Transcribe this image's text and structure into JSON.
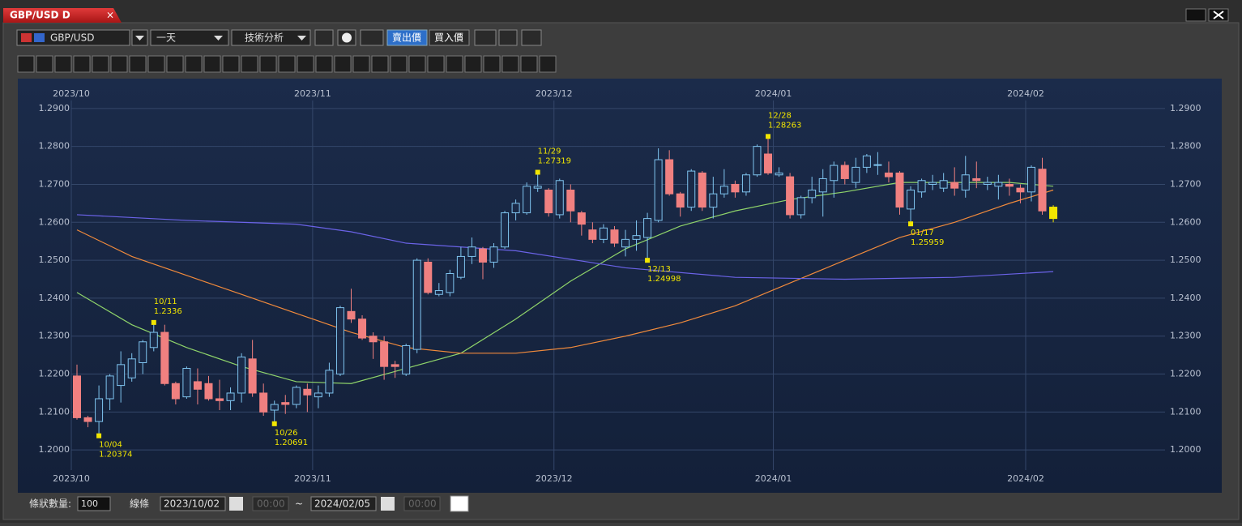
{
  "tab": {
    "title": "GBP/USD D",
    "close": "×"
  },
  "toolbar": {
    "symbol": "GBP/USD",
    "period": "一天",
    "analysis": "技術分析",
    "sell": "賣出價",
    "buy": "買入價"
  },
  "footer": {
    "bars_label": "條狀數量:",
    "bars": "100",
    "line": "線條",
    "from_date": "2023/10/02",
    "from_time": "00:00",
    "sep": "~",
    "to_date": "2024/02/05",
    "to_time": "00:00"
  },
  "chart_data": {
    "type": "candlestick",
    "up_color": "#7fc4ef",
    "down_color": "#f08080",
    "last_color": "#f2e600",
    "ylim": [
      1.1947,
      1.2921
    ],
    "yticks": [
      {
        "value": 1.2,
        "label": "1.2000"
      },
      {
        "value": 1.21,
        "label": "1.2100"
      },
      {
        "value": 1.22,
        "label": "1.2200"
      },
      {
        "value": 1.23,
        "label": "1.2300"
      },
      {
        "value": 1.24,
        "label": "1.2400"
      },
      {
        "value": 1.25,
        "label": "1.2500"
      },
      {
        "value": 1.26,
        "label": "1.2600"
      },
      {
        "value": 1.27,
        "label": "1.2700"
      },
      {
        "value": 1.28,
        "label": "1.2800"
      },
      {
        "value": 1.29,
        "label": "1.2900"
      }
    ],
    "xticks": [
      {
        "value": 0,
        "label": "2023/10"
      },
      {
        "value": 22,
        "label": "2023/11"
      },
      {
        "value": 44,
        "label": "2023/12"
      },
      {
        "value": 64,
        "label": "2024/01"
      },
      {
        "value": 87,
        "label": "2024/02"
      }
    ],
    "grid": true,
    "candles": [
      {
        "o": 1.2195,
        "h": 1.2225,
        "l": 1.208,
        "c": 1.2085
      },
      {
        "o": 1.2085,
        "h": 1.209,
        "l": 1.206,
        "c": 1.2075
      },
      {
        "o": 1.2075,
        "h": 1.217,
        "l": 1.20374,
        "c": 1.2135
      },
      {
        "o": 1.2135,
        "h": 1.22,
        "l": 1.2105,
        "c": 1.2195
      },
      {
        "o": 1.217,
        "h": 1.226,
        "l": 1.2125,
        "c": 1.2225
      },
      {
        "o": 1.219,
        "h": 1.2255,
        "l": 1.218,
        "c": 1.224
      },
      {
        "o": 1.223,
        "h": 1.229,
        "l": 1.22,
        "c": 1.2285
      },
      {
        "o": 1.227,
        "h": 1.2336,
        "l": 1.226,
        "c": 1.231
      },
      {
        "o": 1.231,
        "h": 1.233,
        "l": 1.217,
        "c": 1.2175
      },
      {
        "o": 1.2175,
        "h": 1.218,
        "l": 1.212,
        "c": 1.2135
      },
      {
        "o": 1.214,
        "h": 1.222,
        "l": 1.2135,
        "c": 1.2215
      },
      {
        "o": 1.218,
        "h": 1.2215,
        "l": 1.212,
        "c": 1.216
      },
      {
        "o": 1.2175,
        "h": 1.2195,
        "l": 1.213,
        "c": 1.2135
      },
      {
        "o": 1.2135,
        "h": 1.2185,
        "l": 1.2105,
        "c": 1.213
      },
      {
        "o": 1.213,
        "h": 1.2165,
        "l": 1.2105,
        "c": 1.215
      },
      {
        "o": 1.215,
        "h": 1.2255,
        "l": 1.2125,
        "c": 1.2245
      },
      {
        "o": 1.224,
        "h": 1.229,
        "l": 1.214,
        "c": 1.215
      },
      {
        "o": 1.215,
        "h": 1.2175,
        "l": 1.209,
        "c": 1.21
      },
      {
        "o": 1.2105,
        "h": 1.213,
        "l": 1.20691,
        "c": 1.212
      },
      {
        "o": 1.2125,
        "h": 1.2145,
        "l": 1.2095,
        "c": 1.212
      },
      {
        "o": 1.212,
        "h": 1.217,
        "l": 1.211,
        "c": 1.2165
      },
      {
        "o": 1.216,
        "h": 1.2175,
        "l": 1.21,
        "c": 1.2145
      },
      {
        "o": 1.214,
        "h": 1.217,
        "l": 1.211,
        "c": 1.215
      },
      {
        "o": 1.215,
        "h": 1.223,
        "l": 1.214,
        "c": 1.221
      },
      {
        "o": 1.22,
        "h": 1.238,
        "l": 1.2195,
        "c": 1.2375
      },
      {
        "o": 1.2365,
        "h": 1.2425,
        "l": 1.2335,
        "c": 1.2345
      },
      {
        "o": 1.2345,
        "h": 1.2355,
        "l": 1.229,
        "c": 1.2295
      },
      {
        "o": 1.23,
        "h": 1.231,
        "l": 1.224,
        "c": 1.2285
      },
      {
        "o": 1.2285,
        "h": 1.23,
        "l": 1.2185,
        "c": 1.222
      },
      {
        "o": 1.2225,
        "h": 1.2235,
        "l": 1.219,
        "c": 1.222
      },
      {
        "o": 1.22,
        "h": 1.228,
        "l": 1.2195,
        "c": 1.2275
      },
      {
        "o": 1.2265,
        "h": 1.2505,
        "l": 1.2255,
        "c": 1.25
      },
      {
        "o": 1.2495,
        "h": 1.2505,
        "l": 1.241,
        "c": 1.2415
      },
      {
        "o": 1.241,
        "h": 1.244,
        "l": 1.2405,
        "c": 1.242
      },
      {
        "o": 1.2415,
        "h": 1.2475,
        "l": 1.2405,
        "c": 1.2465
      },
      {
        "o": 1.2455,
        "h": 1.2535,
        "l": 1.245,
        "c": 1.251
      },
      {
        "o": 1.251,
        "h": 1.256,
        "l": 1.249,
        "c": 1.2535
      },
      {
        "o": 1.253,
        "h": 1.2535,
        "l": 1.245,
        "c": 1.2495
      },
      {
        "o": 1.2495,
        "h": 1.2545,
        "l": 1.248,
        "c": 1.2535
      },
      {
        "o": 1.2535,
        "h": 1.263,
        "l": 1.253,
        "c": 1.2625
      },
      {
        "o": 1.2625,
        "h": 1.266,
        "l": 1.2605,
        "c": 1.265
      },
      {
        "o": 1.2625,
        "h": 1.2705,
        "l": 1.262,
        "c": 1.2695
      },
      {
        "o": 1.269,
        "h": 1.27319,
        "l": 1.268,
        "c": 1.2695
      },
      {
        "o": 1.2685,
        "h": 1.269,
        "l": 1.2615,
        "c": 1.2625
      },
      {
        "o": 1.262,
        "h": 1.2715,
        "l": 1.261,
        "c": 1.271
      },
      {
        "o": 1.2685,
        "h": 1.27,
        "l": 1.26,
        "c": 1.263
      },
      {
        "o": 1.2625,
        "h": 1.263,
        "l": 1.2565,
        "c": 1.2595
      },
      {
        "o": 1.258,
        "h": 1.26,
        "l": 1.2545,
        "c": 1.2555
      },
      {
        "o": 1.2555,
        "h": 1.2595,
        "l": 1.2545,
        "c": 1.2585
      },
      {
        "o": 1.258,
        "h": 1.259,
        "l": 1.2535,
        "c": 1.2545
      },
      {
        "o": 1.2535,
        "h": 1.258,
        "l": 1.251,
        "c": 1.2555
      },
      {
        "o": 1.2555,
        "h": 1.2605,
        "l": 1.2525,
        "c": 1.2565
      },
      {
        "o": 1.256,
        "h": 1.2625,
        "l": 1.24998,
        "c": 1.261
      },
      {
        "o": 1.2605,
        "h": 1.2795,
        "l": 1.26,
        "c": 1.2765
      },
      {
        "o": 1.2765,
        "h": 1.279,
        "l": 1.267,
        "c": 1.2675
      },
      {
        "o": 1.2675,
        "h": 1.268,
        "l": 1.2615,
        "c": 1.264
      },
      {
        "o": 1.264,
        "h": 1.274,
        "l": 1.263,
        "c": 1.2735
      },
      {
        "o": 1.273,
        "h": 1.2735,
        "l": 1.263,
        "c": 1.264
      },
      {
        "o": 1.264,
        "h": 1.272,
        "l": 1.261,
        "c": 1.2675
      },
      {
        "o": 1.2675,
        "h": 1.274,
        "l": 1.2665,
        "c": 1.2695
      },
      {
        "o": 1.27,
        "h": 1.271,
        "l": 1.2665,
        "c": 1.268
      },
      {
        "o": 1.268,
        "h": 1.273,
        "l": 1.267,
        "c": 1.2725
      },
      {
        "o": 1.2725,
        "h": 1.2805,
        "l": 1.272,
        "c": 1.28
      },
      {
        "o": 1.278,
        "h": 1.28263,
        "l": 1.2725,
        "c": 1.273
      },
      {
        "o": 1.2725,
        "h": 1.2745,
        "l": 1.272,
        "c": 1.273
      },
      {
        "o": 1.272,
        "h": 1.273,
        "l": 1.261,
        "c": 1.262
      },
      {
        "o": 1.262,
        "h": 1.267,
        "l": 1.261,
        "c": 1.2665
      },
      {
        "o": 1.2665,
        "h": 1.272,
        "l": 1.265,
        "c": 1.2685
      },
      {
        "o": 1.268,
        "h": 1.274,
        "l": 1.2615,
        "c": 1.2715
      },
      {
        "o": 1.271,
        "h": 1.276,
        "l": 1.2665,
        "c": 1.275
      },
      {
        "o": 1.275,
        "h": 1.276,
        "l": 1.27,
        "c": 1.2715
      },
      {
        "o": 1.2705,
        "h": 1.277,
        "l": 1.269,
        "c": 1.2745
      },
      {
        "o": 1.2745,
        "h": 1.278,
        "l": 1.273,
        "c": 1.2775
      },
      {
        "o": 1.275,
        "h": 1.2785,
        "l": 1.2725,
        "c": 1.2752
      },
      {
        "o": 1.273,
        "h": 1.276,
        "l": 1.2705,
        "c": 1.272
      },
      {
        "o": 1.273,
        "h": 1.2735,
        "l": 1.262,
        "c": 1.264
      },
      {
        "o": 1.2635,
        "h": 1.2695,
        "l": 1.25959,
        "c": 1.2685
      },
      {
        "o": 1.268,
        "h": 1.2715,
        "l": 1.2665,
        "c": 1.271
      },
      {
        "o": 1.27,
        "h": 1.2725,
        "l": 1.2685,
        "c": 1.2705
      },
      {
        "o": 1.269,
        "h": 1.273,
        "l": 1.268,
        "c": 1.271
      },
      {
        "o": 1.2705,
        "h": 1.2745,
        "l": 1.267,
        "c": 1.269
      },
      {
        "o": 1.2685,
        "h": 1.2775,
        "l": 1.2665,
        "c": 1.2725
      },
      {
        "o": 1.2715,
        "h": 1.276,
        "l": 1.269,
        "c": 1.271
      },
      {
        "o": 1.27,
        "h": 1.272,
        "l": 1.2685,
        "c": 1.2705
      },
      {
        "o": 1.2695,
        "h": 1.2725,
        "l": 1.266,
        "c": 1.2705
      },
      {
        "o": 1.27,
        "h": 1.2715,
        "l": 1.267,
        "c": 1.2695
      },
      {
        "o": 1.269,
        "h": 1.27,
        "l": 1.265,
        "c": 1.268
      },
      {
        "o": 1.268,
        "h": 1.275,
        "l": 1.2655,
        "c": 1.2745
      },
      {
        "o": 1.274,
        "h": 1.277,
        "l": 1.262,
        "c": 1.263
      },
      {
        "o": 1.264,
        "h": 1.2645,
        "l": 1.26,
        "c": 1.261
      }
    ],
    "lines": [
      {
        "color": "#8fd46a",
        "x": [
          0,
          5,
          10,
          15,
          20,
          25,
          30,
          35,
          40,
          45,
          50,
          55,
          60,
          65,
          70,
          75,
          80,
          85,
          89
        ],
        "values": [
          1.2415,
          1.233,
          1.227,
          1.222,
          1.218,
          1.2175,
          1.2215,
          1.2255,
          1.2345,
          1.2445,
          1.253,
          1.259,
          1.263,
          1.266,
          1.268,
          1.2705,
          1.2705,
          1.2705,
          1.2695
        ]
      },
      {
        "color": "#f08a3c",
        "x": [
          0,
          5,
          10,
          15,
          20,
          25,
          30,
          35,
          40,
          45,
          50,
          55,
          60,
          65,
          70,
          75,
          80,
          85,
          89
        ],
        "values": [
          1.258,
          1.251,
          1.246,
          1.241,
          1.236,
          1.231,
          1.227,
          1.2255,
          1.2255,
          1.227,
          1.23,
          1.2335,
          1.238,
          1.244,
          1.25,
          1.256,
          1.26,
          1.265,
          1.2685
        ]
      },
      {
        "color": "#6b63e8",
        "x": [
          0,
          10,
          20,
          25,
          30,
          40,
          50,
          60,
          70,
          80,
          89
        ],
        "values": [
          1.262,
          1.2605,
          1.2595,
          1.2575,
          1.2545,
          1.2525,
          1.248,
          1.2455,
          1.245,
          1.2455,
          1.247
        ]
      }
    ],
    "annotations": [
      {
        "x": 2,
        "date": "10/04",
        "value": 1.20374
      },
      {
        "x": 7,
        "date": "10/11",
        "value": 1.2336
      },
      {
        "x": 18,
        "date": "10/26",
        "value": 1.20691
      },
      {
        "x": 42,
        "date": "11/29",
        "value": 1.27319
      },
      {
        "x": 52,
        "date": "12/13",
        "value": 1.24998
      },
      {
        "x": 63,
        "date": "12/28",
        "value": 1.28263
      },
      {
        "x": 76,
        "date": "01/17",
        "value": 1.25959
      }
    ]
  }
}
